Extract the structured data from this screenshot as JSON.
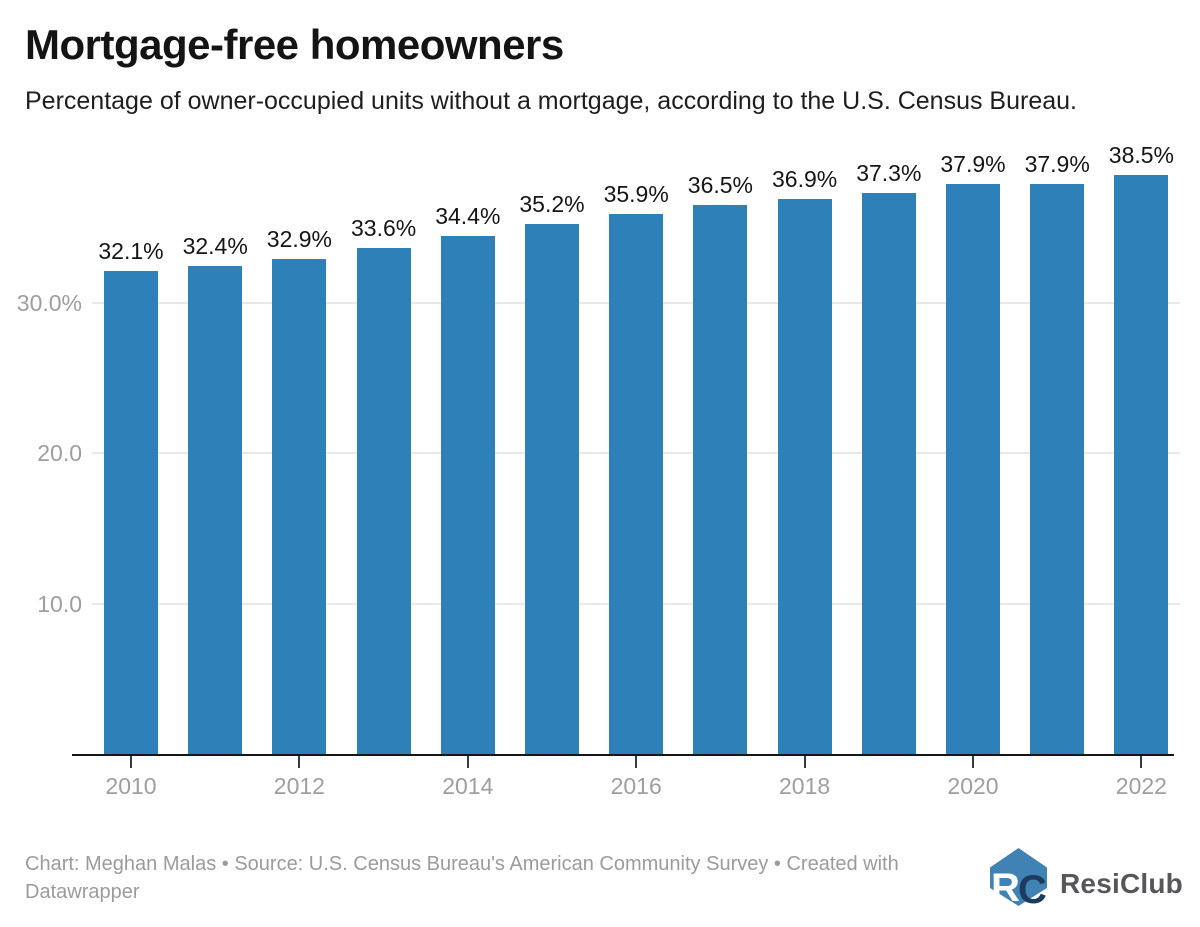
{
  "header": {
    "title": "Mortgage-free homeowners",
    "subtitle": "Percentage of owner-occupied units without a mortgage, according to the U.S. Census Bureau."
  },
  "chart_data": {
    "type": "bar",
    "title": "Mortgage-free homeowners",
    "subtitle": "Percentage of owner-occupied units without a mortgage, according to the U.S. Census Bureau.",
    "categories": [
      "2010",
      "2011",
      "2012",
      "2013",
      "2014",
      "2015",
      "2016",
      "2017",
      "2018",
      "2019",
      "2020",
      "2021",
      "2022"
    ],
    "values": [
      32.1,
      32.4,
      32.9,
      33.6,
      34.4,
      35.2,
      35.9,
      36.5,
      36.9,
      37.3,
      37.9,
      37.9,
      38.5
    ],
    "value_labels": [
      "32.1%",
      "32.4%",
      "32.9%",
      "33.6%",
      "34.4%",
      "35.2%",
      "35.9%",
      "36.5%",
      "36.9%",
      "37.3%",
      "37.9%",
      "37.9%",
      "38.5%"
    ],
    "xlabel": "",
    "ylabel": "",
    "ylim": [
      0,
      40
    ],
    "y_ticks": [
      {
        "value": 30,
        "label": "30.0%"
      },
      {
        "value": 20,
        "label": "20.0"
      },
      {
        "value": 10,
        "label": "10.0"
      }
    ],
    "x_tick_labels": [
      "2010",
      "2012",
      "2014",
      "2016",
      "2018",
      "2020",
      "2022"
    ],
    "grid": "horizontal-only",
    "legend": "none",
    "bar_color": "#2d80b8",
    "value_label_position": "above-bar"
  },
  "footer": {
    "credit_line1": "Chart: Meghan Malas • Source: U.S. Census Bureau's American Community Survey • Created with",
    "credit_line2": "Datawrapper",
    "logo_text": "ResiClub",
    "logo_monogram_r": "R",
    "logo_monogram_c": "C"
  },
  "colors": {
    "bar": "#2d80b8",
    "background": "#ffffff",
    "title_text": "#141414",
    "value_label_text": "#151515",
    "axis_text": "#9e9e9e",
    "gridline": "#e9e9e9",
    "axis_line": "#161616",
    "footer_text": "#9b9b9b",
    "logo_house": "#4182b4",
    "logo_letter_navy": "#1d3a5f",
    "logo_text_color": "#57575a"
  }
}
